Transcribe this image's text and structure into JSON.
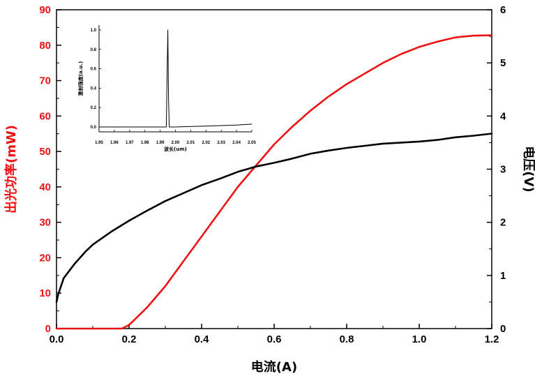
{
  "colors": {
    "power": "#ee1111",
    "voltage": "#000000",
    "axis": "#000000"
  },
  "chart_data": [
    {
      "type": "line",
      "xlabel": "电流(A)",
      "ylabel_left": "出光功率(mW)",
      "ylabel_right": "电压(V)",
      "xlim": [
        0,
        1.2
      ],
      "ylim_left": [
        0,
        90
      ],
      "ylim_right": [
        0,
        6
      ],
      "x_ticks": [
        "0.0",
        "0.2",
        "0.4",
        "0.6",
        "0.8",
        "1.0",
        "1.2"
      ],
      "y_left_ticks": [
        "0",
        "10",
        "20",
        "30",
        "40",
        "50",
        "60",
        "70",
        "80",
        "90"
      ],
      "y_right_ticks": [
        "0",
        "1",
        "2",
        "3",
        "4",
        "5",
        "6"
      ],
      "grid": false,
      "series": [
        {
          "axis": "left",
          "color": "#ee1111",
          "x": [
            0.0,
            0.1,
            0.18,
            0.2,
            0.22,
            0.25,
            0.3,
            0.35,
            0.4,
            0.45,
            0.5,
            0.55,
            0.6,
            0.65,
            0.7,
            0.75,
            0.8,
            0.85,
            0.9,
            0.95,
            1.0,
            1.05,
            1.1,
            1.15,
            1.2
          ],
          "values": [
            0,
            0,
            0,
            1,
            3,
            6,
            12,
            19,
            26,
            33,
            40,
            46,
            52,
            57,
            61.5,
            65.5,
            69,
            72,
            75,
            77.5,
            79.5,
            81,
            82.2,
            82.7,
            82.8
          ]
        },
        {
          "axis": "right",
          "color": "#000000",
          "x": [
            0.0,
            0.005,
            0.02,
            0.05,
            0.08,
            0.1,
            0.15,
            0.2,
            0.25,
            0.3,
            0.35,
            0.4,
            0.45,
            0.5,
            0.55,
            0.6,
            0.65,
            0.7,
            0.75,
            0.8,
            0.85,
            0.9,
            0.95,
            1.0,
            1.05,
            1.1,
            1.15,
            1.2
          ],
          "values": [
            0.5,
            0.65,
            0.95,
            1.22,
            1.45,
            1.58,
            1.82,
            2.03,
            2.22,
            2.4,
            2.55,
            2.7,
            2.82,
            2.95,
            3.05,
            3.12,
            3.2,
            3.29,
            3.35,
            3.4,
            3.44,
            3.48,
            3.5,
            3.52,
            3.55,
            3.6,
            3.63,
            3.67
          ]
        }
      ]
    },
    {
      "type": "line",
      "xlabel": "波长(um)",
      "ylabel": "激射强度(a.u.)",
      "xlim": [
        1.95,
        2.05
      ],
      "ylim": [
        -0.05,
        1.05
      ],
      "x_ticks": [
        "1.95",
        "1.96",
        "1.97",
        "1.98",
        "1.99",
        "2.00",
        "2.01",
        "2.02",
        "2.03",
        "2.04",
        "2.05"
      ],
      "y_ticks": [
        "0.0",
        "0.2",
        "0.4",
        "0.6",
        "0.8",
        "1.0"
      ],
      "series": [
        {
          "color": "#000000",
          "x": [
            1.95,
            1.96,
            1.97,
            1.98,
            1.99,
            1.994,
            1.995,
            1.9955,
            1.996,
            1.997,
            2.0,
            2.02,
            2.04,
            2.05
          ],
          "values": [
            0.0,
            0.0,
            0.0,
            0.0,
            0.0,
            0.0,
            1.0,
            0.3,
            0.0,
            0.0,
            0.0,
            0.01,
            0.02,
            0.03
          ]
        }
      ]
    }
  ]
}
